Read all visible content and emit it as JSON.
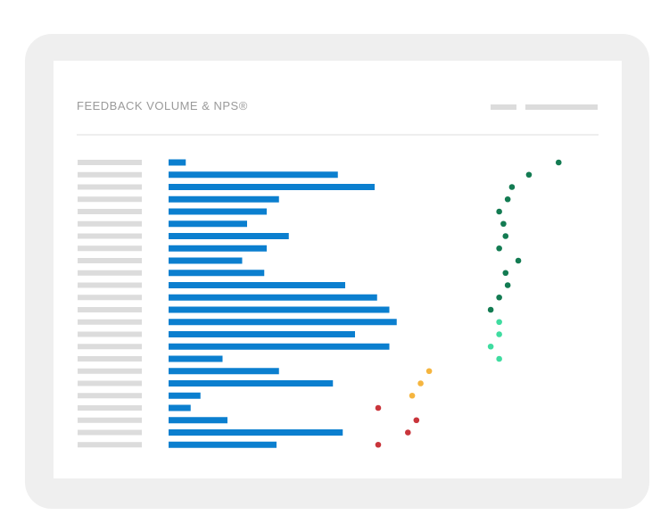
{
  "header": {
    "title": "FEEDBACK VOLUME & NPS®"
  },
  "colors": {
    "bar": "#0b7fcf",
    "row_label_placeholder": "#dcdcdc",
    "nps_dark_green": "#137b52",
    "nps_light_green": "#3fdca0",
    "nps_yellow": "#f5b53f",
    "nps_red": "#c9353b"
  },
  "chart_data": {
    "type": "bar",
    "row_count": 24,
    "series": [
      {
        "kind": "bar",
        "values": [
          7,
          69,
          84,
          45,
          40,
          32,
          49,
          40,
          30,
          39,
          72,
          85,
          90,
          93,
          76,
          90,
          22,
          45,
          67,
          13,
          9,
          24,
          71,
          44
        ]
      },
      {
        "kind": "scatter",
        "values": [
          56,
          42,
          34,
          32,
          28,
          30,
          31,
          28,
          37,
          31,
          32,
          28,
          24,
          28,
          28,
          24,
          28,
          -5,
          -9,
          -13,
          -29,
          -11,
          -15,
          -29
        ],
        "point_colors": [
          "dark-green",
          "dark-green",
          "dark-green",
          "dark-green",
          "dark-green",
          "dark-green",
          "dark-green",
          "dark-green",
          "dark-green",
          "dark-green",
          "dark-green",
          "dark-green",
          "dark-green",
          "light-green",
          "light-green",
          "light-green",
          "light-green",
          "yellow",
          "yellow",
          "yellow",
          "red",
          "red",
          "red",
          "red"
        ]
      }
    ],
    "bar_xlim": [
      0,
      100
    ],
    "scatter_xlim": [
      -100,
      100
    ],
    "grid": false,
    "legend": "none"
  }
}
